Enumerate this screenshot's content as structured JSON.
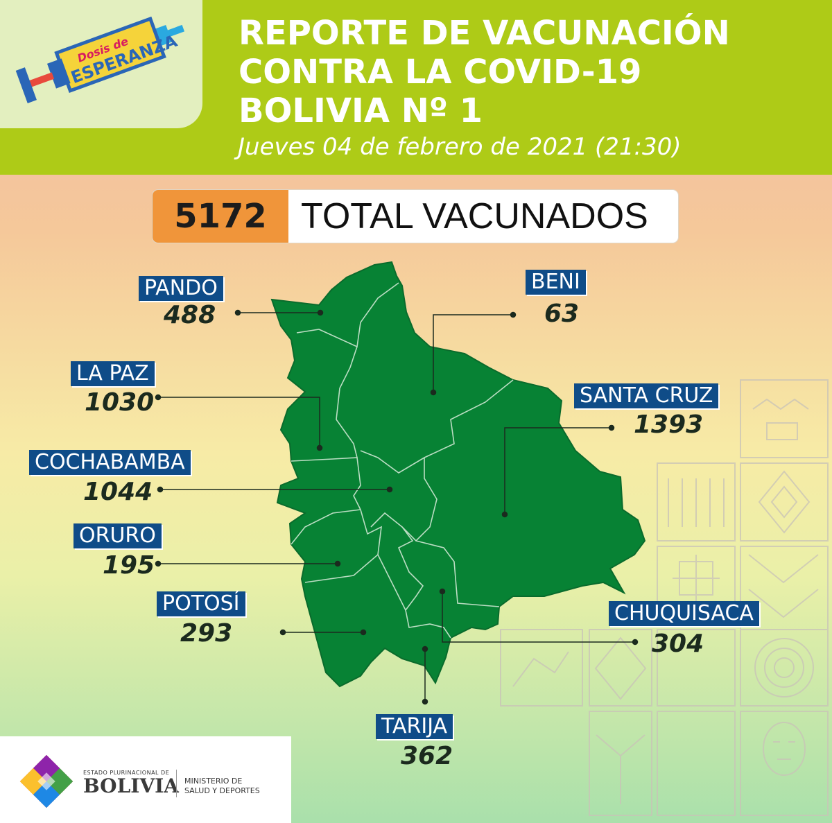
{
  "header": {
    "logo_top_text": "Dosis de",
    "logo_main_text": "ESPERANZA",
    "title_lines": [
      "REPORTE DE VACUNACIÓN",
      "CONTRA LA COVID-19",
      "BOLIVIA Nº 1"
    ],
    "date": "Jueves 04 de febrero de 2021 (21:30)"
  },
  "total": {
    "value": "5172",
    "label": "TOTAL VACUNADOS"
  },
  "departments": [
    {
      "name": "PANDO",
      "count": "488"
    },
    {
      "name": "BENI",
      "count": "63"
    },
    {
      "name": "LA PAZ",
      "count": "1030"
    },
    {
      "name": "SANTA CRUZ",
      "count": "1393"
    },
    {
      "name": "COCHABAMBA",
      "count": "1044"
    },
    {
      "name": "ORURO",
      "count": "195"
    },
    {
      "name": "CHUQUISACA",
      "count": "304"
    },
    {
      "name": "POTOSÍ",
      "count": "293"
    },
    {
      "name": "TARIJA",
      "count": "362"
    }
  ],
  "footer": {
    "state_label": "ESTADO PLURINACIONAL DE",
    "country": "BOLIVIA",
    "ministry_line1": "MINISTERIO DE",
    "ministry_line2": "SALUD Y DEPORTES"
  },
  "colors": {
    "header_green": "#aecb17",
    "map_green": "#078234",
    "label_blue": "#0f4c88",
    "total_orange": "#f0953a"
  },
  "icons": [
    "syringe-logo-icon",
    "bolivia-emblem-icon",
    "andean-textile-pattern"
  ]
}
